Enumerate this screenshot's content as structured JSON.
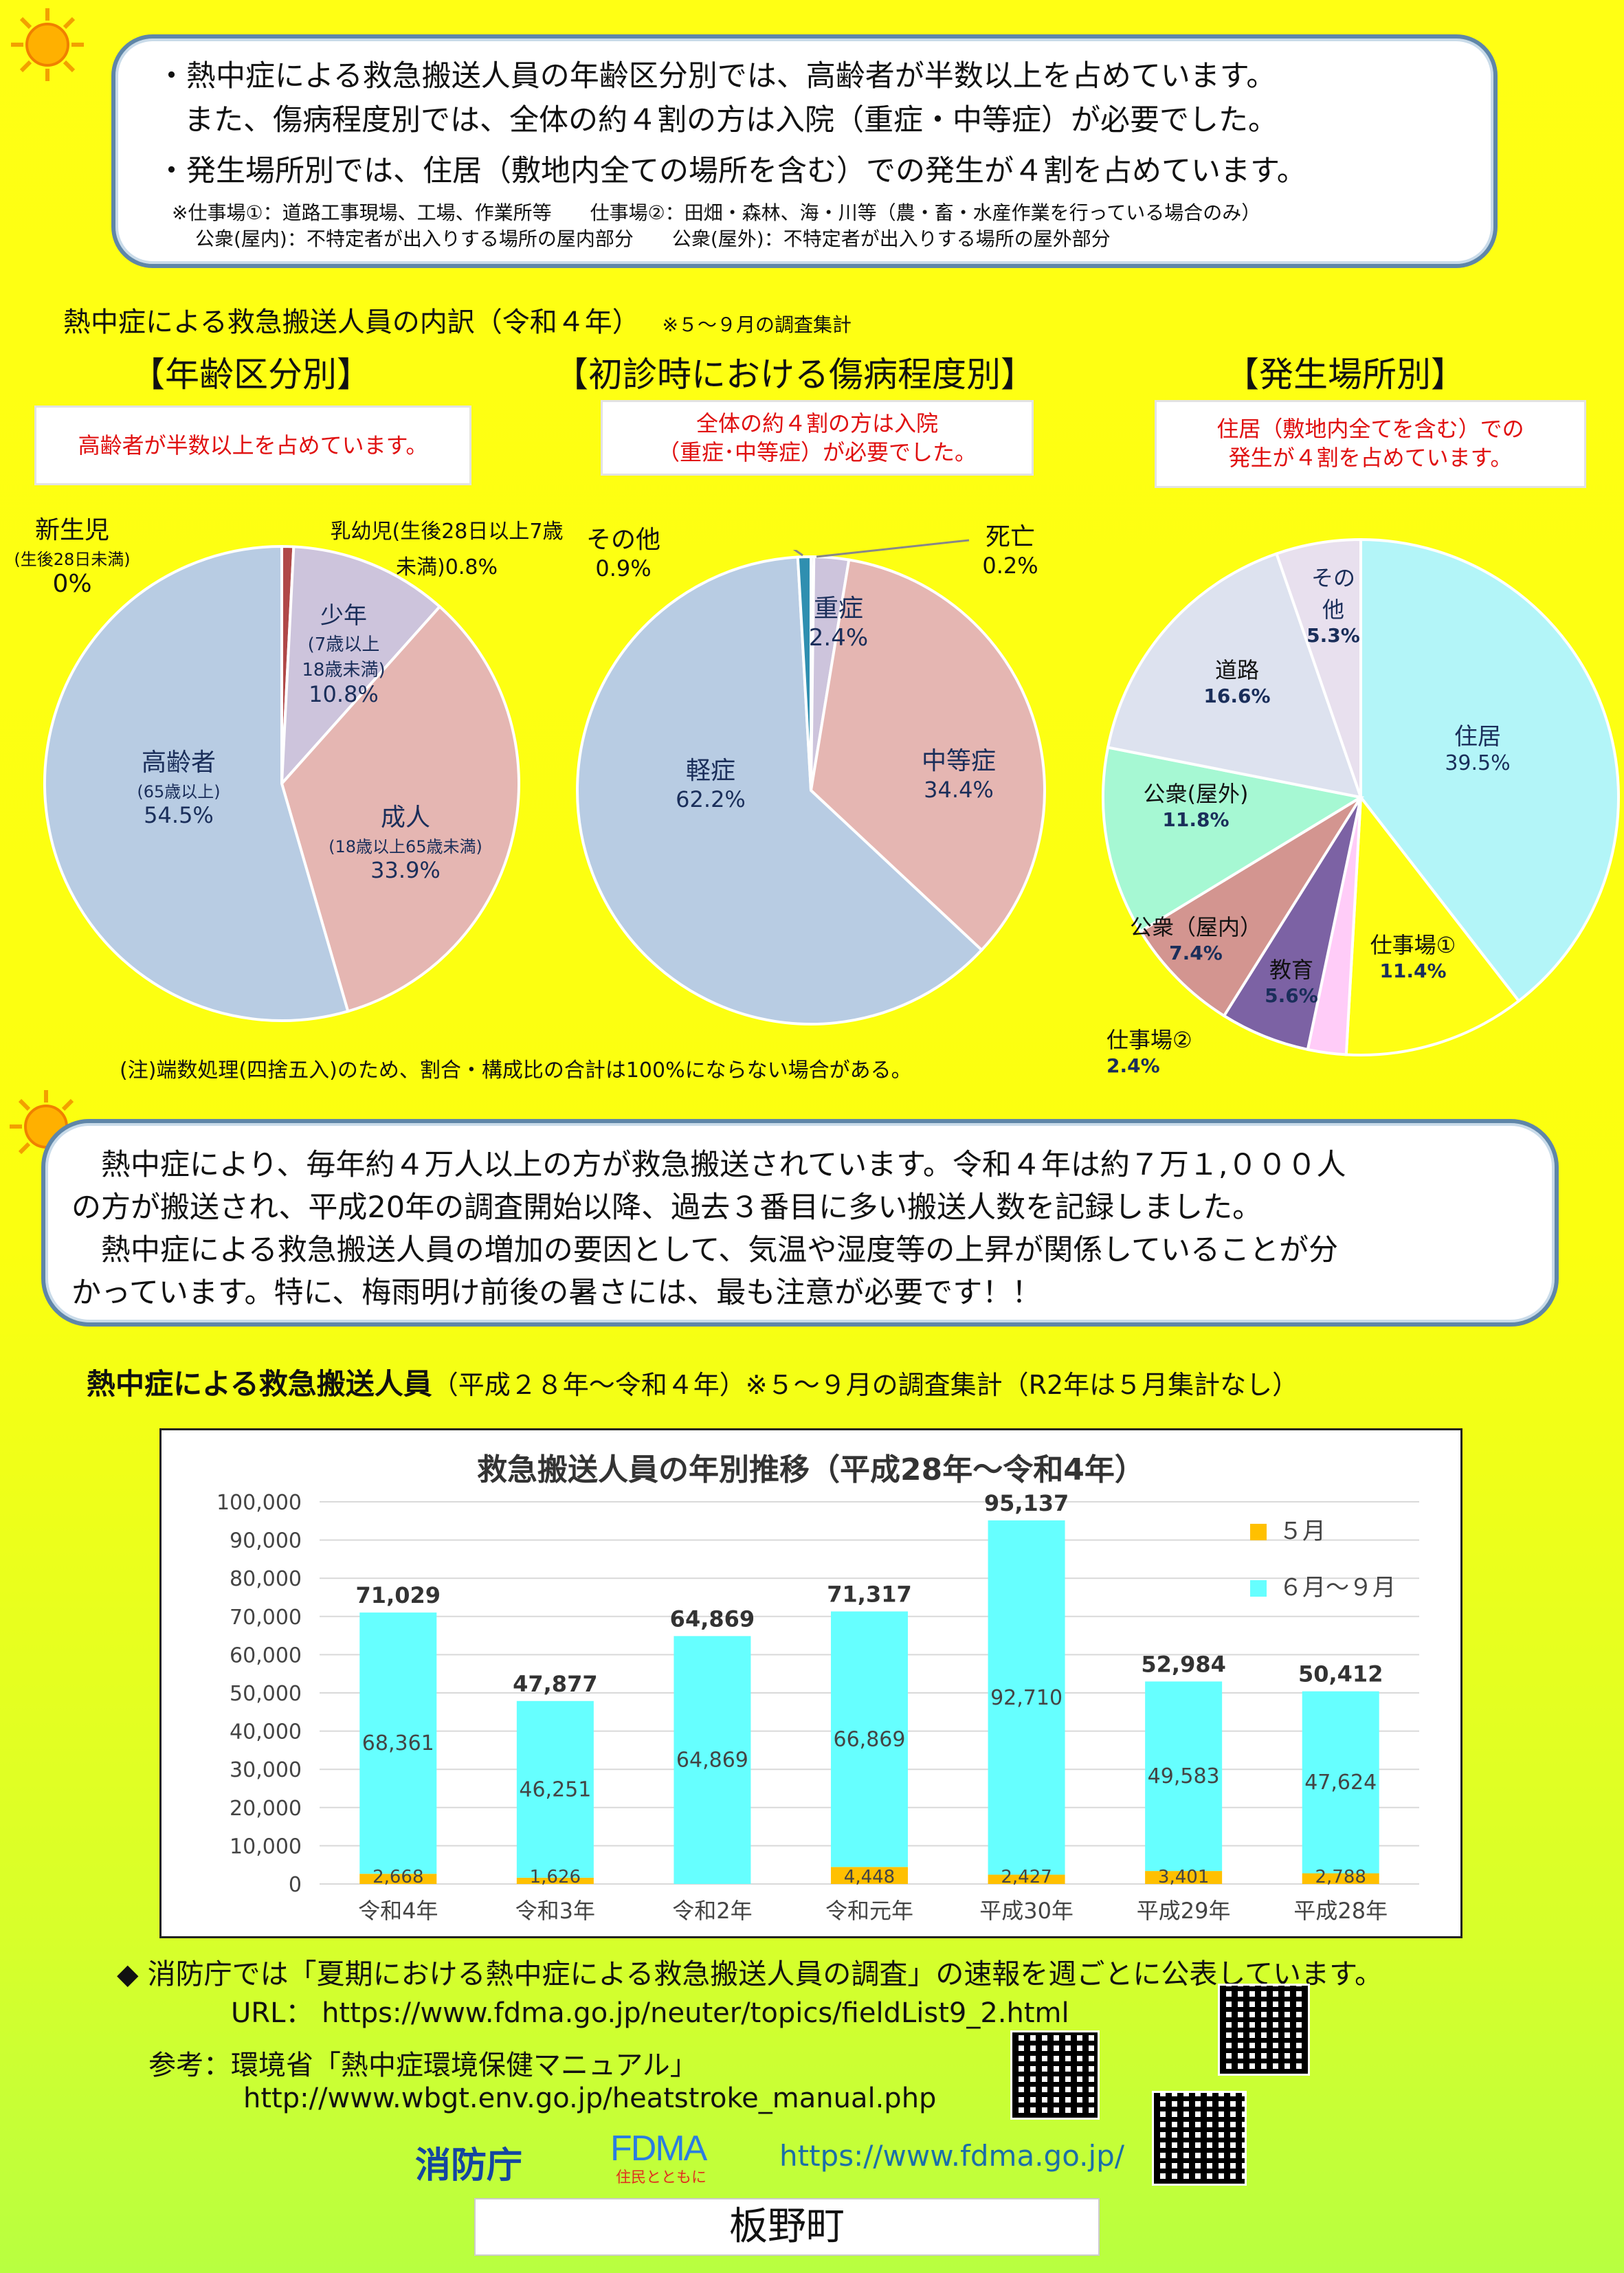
{
  "top_box": {
    "bullet1_line1": "・熱中症による救急搬送人員の年齢区分別では、高齢者が半数以上を占めています。",
    "bullet1_line2": "また、傷病程度別では、全体の約４割の方は入院（重症・中等症）が必要でした。",
    "bullet2": "・発生場所別では、住居（敷地内全ての場所を含む）での発生が４割を占めています。",
    "note1": "※仕事場①：道路工事現場、工場、作業所等　　仕事場②：田畑・森林、海・川等（農・畜・水産作業を行っている場合のみ）",
    "note2": "公衆(屋内)：不特定者が出入りする場所の屋内部分　　公衆(屋外)：不特定者が出入りする場所の屋外部分"
  },
  "breakdown": {
    "title": "熱中症による救急搬送人員の内訳（令和４年）",
    "title_note": "※５～９月の調査集計",
    "age": {
      "heading": "【年齢区分別】",
      "callout": "高齢者が半数以上を占めています。"
    },
    "severity": {
      "heading": "【初診時における傷病程度別】",
      "callout_line1": "全体の約４割の方は入院",
      "callout_line2": "（重症･中等症）が必要でした。"
    },
    "place": {
      "heading": "【発生場所別】",
      "callout_line1": "住居（敷地内全てを含む）での",
      "callout_line2": "発生が４割を占めています。"
    },
    "footnote": "(注)端数処理(四捨五入)のため、割合・構成比の合計は100%にならない場合がある。"
  },
  "pies": {
    "age": {
      "slices": [
        {
          "name": "乳幼児",
          "value": 0.8,
          "color": "#b04848"
        },
        {
          "name": "少年",
          "value": 10.8,
          "color": "#cdc4dc"
        },
        {
          "name": "成人",
          "value": 33.9,
          "color": "#e5b6b2"
        },
        {
          "name": "高齢者",
          "value": 54.5,
          "color": "#b8cce3"
        }
      ],
      "labels": {
        "newborn_name": "新生児",
        "newborn_sub": "(生後28日未満)",
        "newborn_pct": "0%",
        "infant_name": "乳幼児(生後28日以上7歳",
        "infant_sub": "未満)0.8%",
        "youth_name": "少年",
        "youth_sub1": "(7歳以上",
        "youth_sub2": "18歳未満)",
        "youth_pct": "10.8%",
        "adult_name": "成人",
        "adult_sub": "(18歳以上65歳未満)",
        "adult_pct": "33.9%",
        "elderly_name": "高齢者",
        "elderly_sub": "(65歳以上)",
        "elderly_pct": "54.5%"
      }
    },
    "severity": {
      "slices": [
        {
          "name": "死亡",
          "value": 0.2,
          "color": "#7a7a7a"
        },
        {
          "name": "重症",
          "value": 2.4,
          "color": "#cdc4dc"
        },
        {
          "name": "中等症",
          "value": 34.4,
          "color": "#e5b6b2"
        },
        {
          "name": "軽症",
          "value": 62.2,
          "color": "#b8cce3"
        },
        {
          "name": "その他",
          "value": 0.9,
          "color": "#2f8fb0"
        }
      ],
      "labels": {
        "other_name": "その他",
        "other_pct": "0.9%",
        "death_name": "死亡",
        "death_pct": "0.2%",
        "severe_name": "重症",
        "severe_pct": "2.4%",
        "moderate_name": "中等症",
        "moderate_pct": "34.4%",
        "mild_name": "軽症",
        "mild_pct": "62.2%"
      }
    },
    "place": {
      "slices": [
        {
          "name": "住居",
          "value": 39.5,
          "color": "#b3f5f8"
        },
        {
          "name": "仕事場①",
          "value": 11.4,
          "color": "#ffff14"
        },
        {
          "name": "仕事場②",
          "value": 2.4,
          "color": "#ffccf8"
        },
        {
          "name": "教育",
          "value": 5.6,
          "color": "#7c62a4"
        },
        {
          "name": "公衆（屋内）",
          "value": 7.4,
          "color": "#d39590"
        },
        {
          "name": "公衆（屋外）",
          "value": 11.8,
          "color": "#a6f8d3"
        },
        {
          "name": "道路",
          "value": 16.6,
          "color": "#dde2ef"
        },
        {
          "name": "その他",
          "value": 5.3,
          "color": "#e8e0ee"
        }
      ],
      "labels": {
        "home_name": "住居",
        "home_pct": "39.5%",
        "work1_name": "仕事場①",
        "work1_pct": "11.4%",
        "work2_name": "仕事場②",
        "work2_pct": "2.4%",
        "edu_name": "教育",
        "edu_pct": "5.6%",
        "pubin_name": "公衆（屋内）",
        "pubin_pct": "7.4%",
        "pubout_name": "公衆(屋外)",
        "pubout_pct": "11.8%",
        "road_name": "道路",
        "road_pct": "16.6%",
        "other_name1": "その",
        "other_name2": "他",
        "other_pct": "5.3%"
      }
    }
  },
  "middle_box": {
    "line1": "　熱中症により、毎年約４万人以上の方が救急搬送されています。令和４年は約７万１,０００人",
    "line2": "の方が搬送され、平成20年の調査開始以降、過去３番目に多い搬送人数を記録しました。",
    "line3": "　熱中症による救急搬送人員の増加の要因として、気温や湿度等の上昇が関係していることが分",
    "line4": "かっています。特に、梅雨明け前後の暑さには、最も注意が必要です！！"
  },
  "trend": {
    "title_bold": "熱中症による救急搬送人員",
    "title_rest": "（平成２８年～令和４年）※５～９月の調査集計（R2年は５月集計なし）"
  },
  "chart_data": {
    "type": "bar",
    "title": "救急搬送人員の年別推移（平成28年～令和4年）",
    "categories": [
      "令和4年",
      "令和3年",
      "令和2年",
      "令和元年",
      "平成30年",
      "平成29年",
      "平成28年"
    ],
    "series": [
      {
        "name": "５月",
        "values": [
          2668,
          1626,
          null,
          4448,
          2427,
          3401,
          2788
        ],
        "labels": [
          "2,668",
          "1,626",
          "",
          "4,448",
          "2,427",
          "3,401",
          "2,788"
        ],
        "color": "#ffc000"
      },
      {
        "name": "６月～９月",
        "values": [
          68361,
          46251,
          64869,
          66869,
          92710,
          49583,
          47624
        ],
        "labels": [
          "68,361",
          "46,251",
          "64,869",
          "66,869",
          "92,710",
          "49,583",
          "47,624"
        ],
        "color": "#66ffff"
      }
    ],
    "totals": [
      71029,
      47877,
      64869,
      71317,
      95137,
      52984,
      50412
    ],
    "total_labels": [
      "71,029",
      "47,877",
      "64,869",
      "71,317",
      "95,137",
      "52,984",
      "50,412"
    ],
    "ylim": [
      0,
      100000
    ],
    "yticks": [
      "0",
      "10,000",
      "20,000",
      "30,000",
      "40,000",
      "50,000",
      "60,000",
      "70,000",
      "80,000",
      "90,000",
      "100,000"
    ],
    "stacked": true,
    "grid": true,
    "legend_position": "top-right"
  },
  "info": {
    "announce": "◆ 消防庁では「夏期における熱中症による救急搬送人員の調査」の速報を週ごとに公表しています。",
    "url_line": "URL：  https://www.fdma.go.jp/neuter/topics/fieldList9_2.html",
    "ref_line1": "参考：環境省「熱中症環境保健マニュアル」",
    "ref_line2": "http://www.wbgt.env.go.jp/heatstroke_manual.php",
    "agency": "消防庁",
    "logo": "FDMA",
    "logo_sub": "住民とともに",
    "site": "https://www.fdma.go.jp/",
    "town": "板野町"
  }
}
